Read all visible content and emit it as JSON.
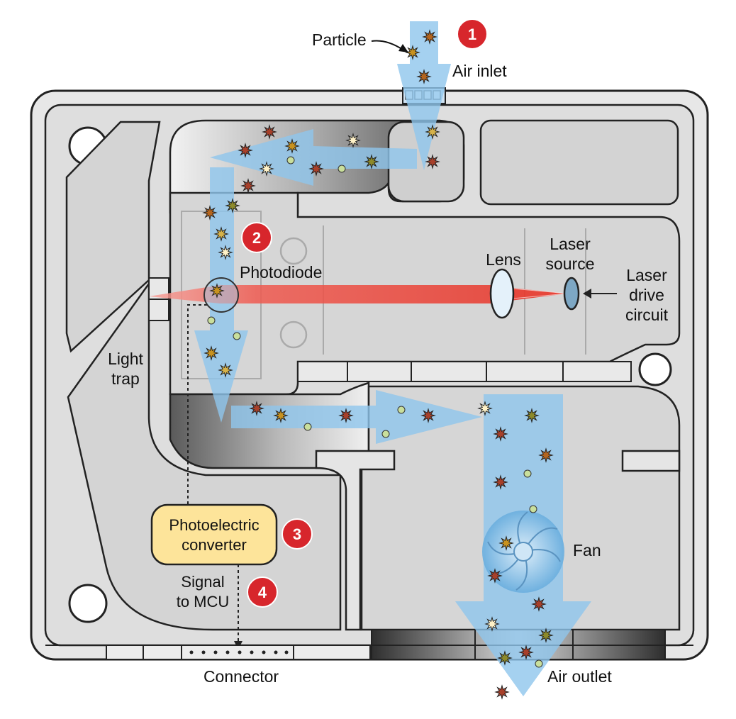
{
  "labels": {
    "particle": "Particle",
    "air_inlet": "Air inlet",
    "photodiode": "Photodiode",
    "lens": "Lens",
    "laser_source_line1": "Laser",
    "laser_source_line2": "source",
    "laser_drive_line1": "Laser",
    "laser_drive_line2": "drive",
    "laser_drive_line3": "circuit",
    "light_trap_line1": "Light",
    "light_trap_line2": "trap",
    "photoelectric_line1": "Photoelectric",
    "photoelectric_line2": "converter",
    "signal_line1": "Signal",
    "signal_line2": "to MCU",
    "fan": "Fan",
    "connector": "Connector",
    "air_outlet": "Air outlet"
  },
  "steps": [
    "1",
    "2",
    "3",
    "4"
  ],
  "colors": {
    "housing": "#e3e3e3",
    "housing_stroke": "#222222",
    "chamber": "#d3d3d3",
    "airflow": "#8ec6ec",
    "laser": "#ef5a50",
    "step_badge": "#d7262c",
    "converter_fill": "#fde49a",
    "particle_dust": "#b4651e",
    "particle_pale": "#c9df9c"
  },
  "icons": [
    "particle-star-icon",
    "fan-icon",
    "lens-icon",
    "laser-source-icon",
    "connector-pins-icon"
  ]
}
